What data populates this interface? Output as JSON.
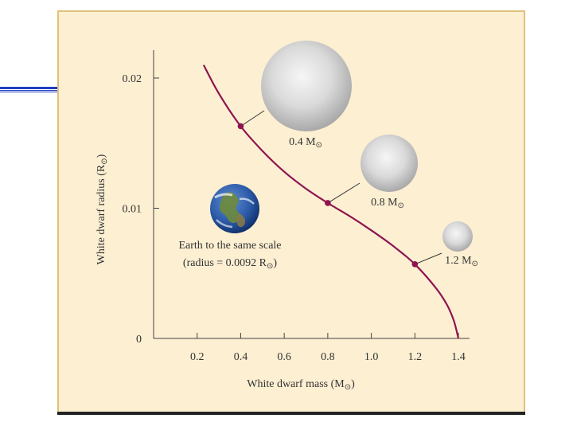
{
  "chart_data": {
    "type": "line",
    "title": "",
    "xlabel": "White dwarf mass (M",
    "xlabel_sub": "⊙",
    "xlabel_close": ")",
    "ylabel": "White dwarf radius (R",
    "ylabel_sub": "⊙",
    "ylabel_close": ")",
    "xlim": [
      0,
      1.4
    ],
    "ylim": [
      0,
      0.022
    ],
    "x_ticks": [
      "0.2",
      "0.4",
      "0.6",
      "0.8",
      "1.0",
      "1.2",
      "1.4"
    ],
    "y_ticks": [
      "0",
      "0.01",
      "0.02"
    ],
    "series": [
      {
        "color": "#8e1450",
        "x": [
          0.23,
          0.3,
          0.4,
          0.5,
          0.6,
          0.7,
          0.8,
          0.9,
          1.0,
          1.1,
          1.2,
          1.3,
          1.35,
          1.38,
          1.4
        ],
        "y": [
          0.021,
          0.0188,
          0.0163,
          0.0144,
          0.0128,
          0.0115,
          0.0104,
          0.0094,
          0.0083,
          0.0071,
          0.0057,
          0.0038,
          0.0025,
          0.0013,
          0.0
        ]
      }
    ],
    "marked_points": [
      {
        "x": 0.4,
        "y": 0.0163,
        "label": "0.4 M",
        "sub": "⊙"
      },
      {
        "x": 0.8,
        "y": 0.0104,
        "label": "0.8 M",
        "sub": "⊙"
      },
      {
        "x": 1.2,
        "y": 0.0057,
        "label": "1.2 M",
        "sub": "⊙"
      }
    ],
    "earth_caption_line1": "Earth to the same scale",
    "earth_caption_line2": "(radius = 0.0092 R",
    "earth_caption_sub": "⊙",
    "earth_caption_close": ")",
    "grid": false,
    "legend": "none"
  },
  "colors": {
    "curve": "#8e1450",
    "background": "#fcefd2",
    "frame": "#e3c07a",
    "accent_rule": "#1f3fbf"
  }
}
